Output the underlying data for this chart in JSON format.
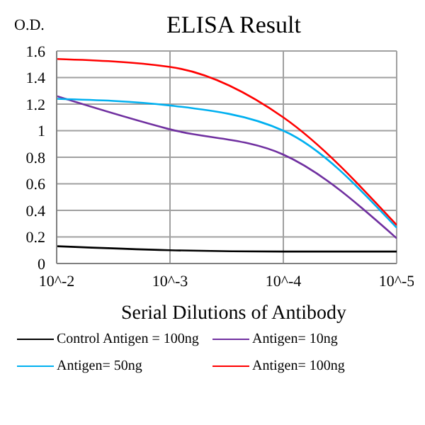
{
  "chart_data": {
    "type": "line",
    "title": "ELISA Result",
    "ylabel": "O.D.",
    "xlabel": "Serial Dilutions of Antibody",
    "categories": [
      "10^-2",
      "10^-3",
      "10^-4",
      "10^-5"
    ],
    "series": [
      {
        "name": "Control Antigen = 100ng",
        "color": "#000000",
        "values": [
          0.13,
          0.1,
          0.09,
          0.09
        ]
      },
      {
        "name": "Antigen= 10ng",
        "color": "#7030a0",
        "values": [
          1.26,
          1.01,
          0.82,
          0.19
        ]
      },
      {
        "name": "Antigen= 50ng",
        "color": "#00b0f0",
        "values": [
          1.24,
          1.19,
          1.0,
          0.27
        ]
      },
      {
        "name": "Antigen= 100ng",
        "color": "#ff0000",
        "values": [
          1.54,
          1.48,
          1.1,
          0.29
        ]
      }
    ],
    "ylim": [
      0,
      1.6
    ],
    "yticks": [
      0,
      0.2,
      0.4,
      0.6,
      0.8,
      1,
      1.2,
      1.4,
      1.6
    ],
    "grid": true,
    "legend": "bottom",
    "marker": "none",
    "line_style": "solid"
  }
}
